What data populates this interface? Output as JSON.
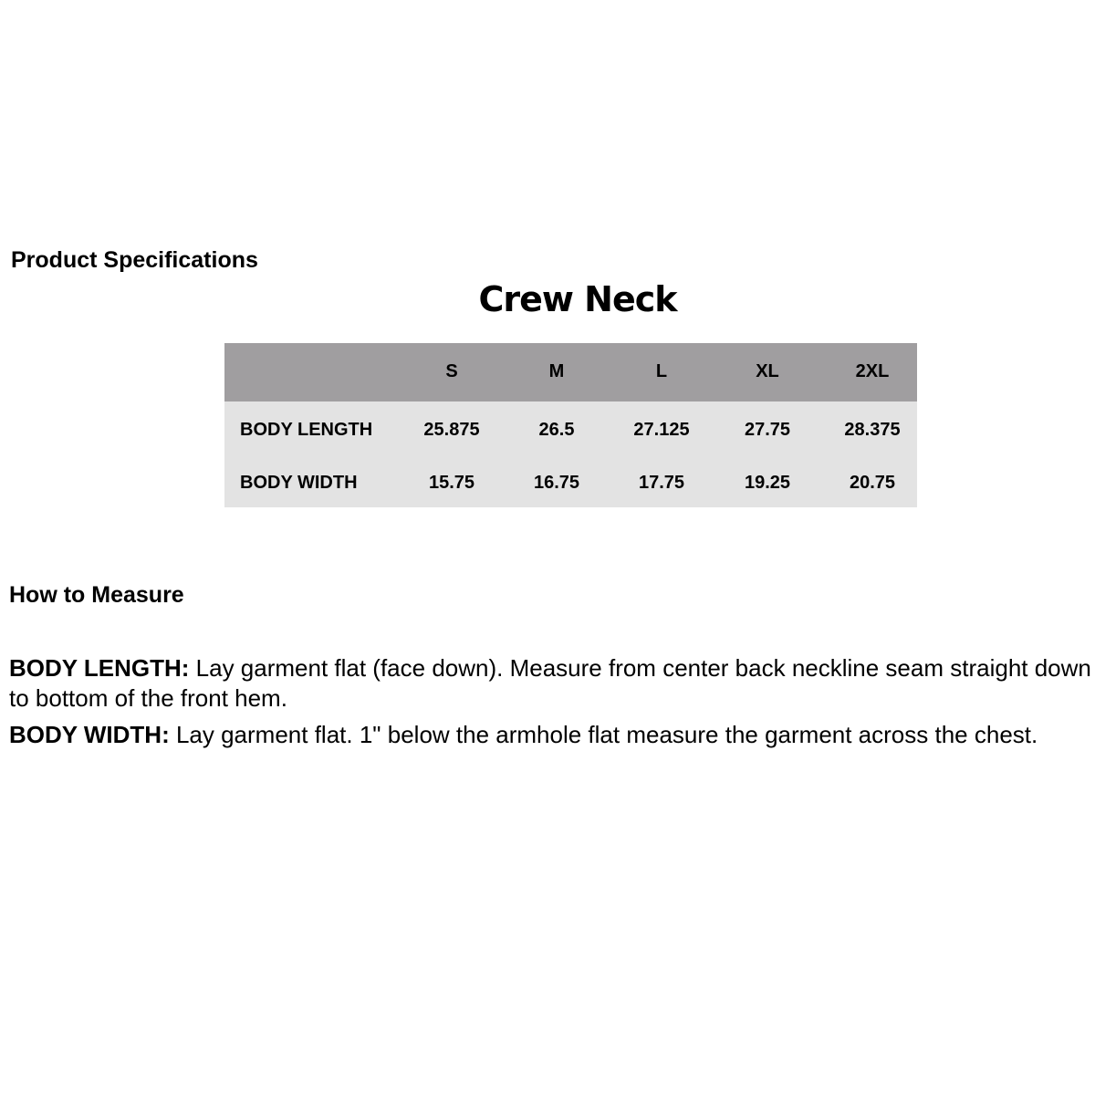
{
  "product_specifications_heading": "Product Specifications",
  "chart_title": "Crew Neck",
  "table": {
    "columns": [
      "S",
      "M",
      "L",
      "XL",
      "2XL"
    ],
    "rows": [
      {
        "label": "BODY LENGTH",
        "values": [
          "25.875",
          "26.5",
          "27.125",
          "27.75",
          "28.375"
        ]
      },
      {
        "label": "BODY WIDTH",
        "values": [
          "15.75",
          "16.75",
          "17.75",
          "19.25",
          "20.75"
        ]
      }
    ],
    "colors": {
      "header": "#a09ea0",
      "body": "#e3e3e3"
    }
  },
  "how_to_measure": {
    "heading": "How to Measure",
    "items": [
      {
        "term": "BODY LENGTH:",
        "text": " Lay garment flat (face down). Measure from center back neckline seam straight down to bottom of the front hem."
      },
      {
        "term": "BODY WIDTH:",
        "text": " Lay garment flat. 1\" below the armhole flat measure the garment across the chest."
      }
    ]
  }
}
